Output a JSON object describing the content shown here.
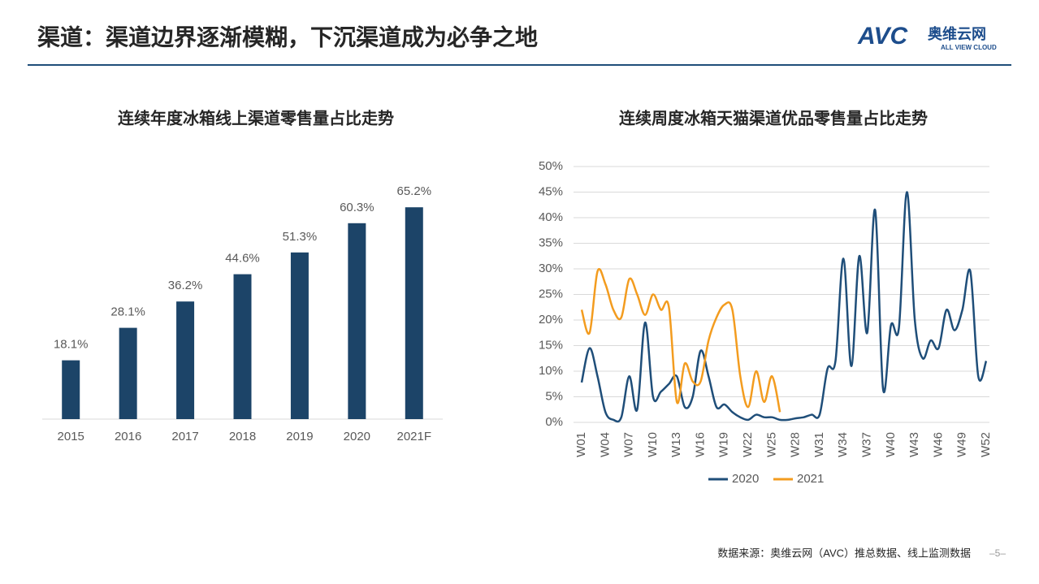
{
  "header": {
    "title": "渠道：渠道边界逐渐模糊，下沉渠道成为必争之地",
    "logo": {
      "brand": "AVC",
      "name": "奥维云网",
      "tagline": "ALL VIEW CLOUD"
    }
  },
  "chart_data": [
    {
      "type": "bar",
      "title": "连续年度冰箱线上渠道零售量占比走势",
      "categories": [
        "2015",
        "2016",
        "2017",
        "2018",
        "2019",
        "2020",
        "2021F"
      ],
      "values": [
        18.1,
        28.1,
        36.2,
        44.6,
        51.3,
        60.3,
        65.2
      ],
      "value_labels": [
        "18.1%",
        "28.1%",
        "36.2%",
        "44.6%",
        "51.3%",
        "60.3%",
        "65.2%"
      ],
      "color": "#1c4468",
      "ylim": [
        0,
        80
      ]
    },
    {
      "type": "line",
      "title": "连续周度冰箱天猫渠道优品零售量占比走势",
      "categories": [
        "W01",
        null,
        null,
        "W04",
        null,
        null,
        "W07",
        null,
        null,
        "W10",
        null,
        null,
        "W13",
        null,
        null,
        "W16",
        null,
        null,
        "W19",
        null,
        null,
        "W22",
        null,
        null,
        "W25",
        null,
        null,
        "W28",
        null,
        null,
        "W31",
        null,
        null,
        "W34",
        null,
        null,
        "W37",
        null,
        null,
        "W40",
        null,
        null,
        "W43",
        null,
        null,
        "W46",
        null,
        null,
        "W49",
        null,
        null,
        "W52"
      ],
      "ylim": [
        0,
        50
      ],
      "yticks": [
        {
          "value": 0,
          "label": "0%"
        },
        {
          "value": 5,
          "label": "5%"
        },
        {
          "value": 10,
          "label": "10%"
        },
        {
          "value": 15,
          "label": "15%"
        },
        {
          "value": 20,
          "label": "20%"
        },
        {
          "value": 25,
          "label": "25%"
        },
        {
          "value": 30,
          "label": "30%"
        },
        {
          "value": 35,
          "label": "35%"
        },
        {
          "value": 40,
          "label": "40%"
        },
        {
          "value": 45,
          "label": "45%"
        },
        {
          "value": 50,
          "label": "50%"
        }
      ],
      "grid": true,
      "legend": "bottom",
      "series": [
        {
          "name": "2020",
          "color": "#1f4e79",
          "values": [
            7.8,
            14.5,
            9,
            2,
            0.5,
            1,
            9,
            2.5,
            19.5,
            5,
            6,
            7.5,
            9,
            3,
            5,
            14,
            9,
            3,
            3.5,
            2,
            1,
            0.5,
            1.5,
            1,
            1,
            0.5,
            0.5,
            0.8,
            1,
            1.5,
            1.5,
            10.5,
            12,
            32,
            11,
            32.5,
            17.5,
            41.5,
            6.5,
            19,
            18.5,
            45,
            20,
            12.5,
            16,
            14.5,
            22,
            18,
            22,
            29.5,
            9,
            12
          ]
        },
        {
          "name": "2021",
          "color": "#f39c1f",
          "values": [
            22,
            17.5,
            29.5,
            27,
            22,
            20.5,
            28,
            25,
            21,
            25,
            22,
            22.5,
            4,
            11.5,
            8,
            8,
            16,
            20.5,
            23,
            22,
            9,
            3,
            10,
            4,
            9,
            2,
            null,
            null,
            null,
            null,
            null,
            null,
            null,
            null,
            null,
            null,
            null,
            null,
            null,
            null,
            null,
            null,
            null,
            null,
            null,
            null,
            null,
            null,
            null,
            null,
            null,
            null
          ]
        }
      ]
    }
  ],
  "footer": {
    "source": "数据来源：奥维云网（AVC）推总数据、线上监测数据",
    "page_number": "–5–"
  }
}
